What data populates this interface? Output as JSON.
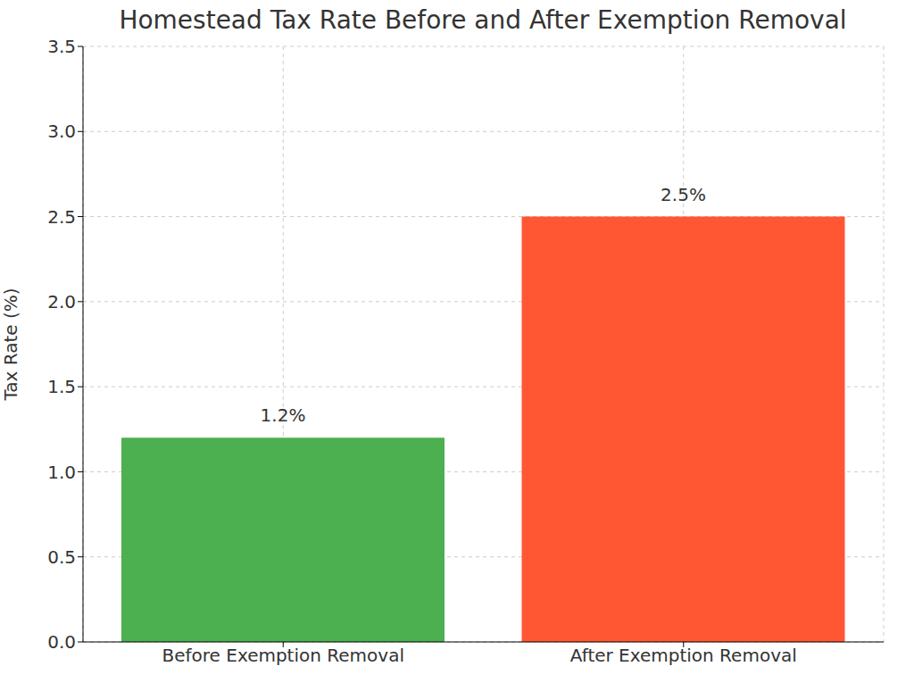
{
  "chart_data": {
    "type": "bar",
    "title": "Homestead Tax Rate Before and After Exemption Removal",
    "categories": [
      "Before Exemption Removal",
      "After Exemption Removal"
    ],
    "values": [
      1.2,
      2.5
    ],
    "value_labels": [
      "1.2%",
      "2.5%"
    ],
    "colors": [
      "#4caf50",
      "#ff5733"
    ],
    "y_label": "Tax Rate (%)",
    "ylim": [
      0,
      3.5
    ],
    "yticks": [
      {
        "value": 0,
        "label": "0.0"
      },
      0.5,
      {
        "value": 1,
        "label": "1.0"
      },
      1.5,
      {
        "value": 2,
        "label": "2.0"
      },
      2.5,
      {
        "value": 3,
        "label": "3.0"
      },
      3.5
    ],
    "grid": true,
    "data_labels": true
  }
}
